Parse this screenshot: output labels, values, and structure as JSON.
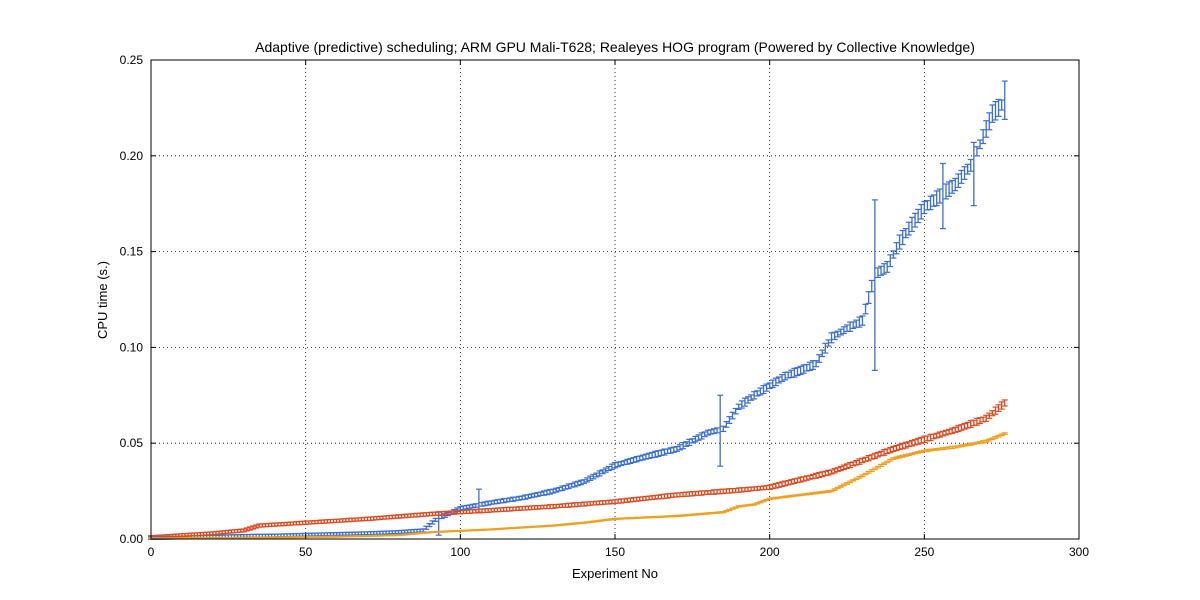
{
  "chart_data": {
    "type": "scatter",
    "title": "Adaptive (predictive) scheduling; ARM GPU Mali-T628; Realeyes HOG program (Powered by Collective Knowledge)",
    "xlabel": "Experiment No",
    "ylabel": "CPU time (s.)",
    "xlim": [
      0,
      300
    ],
    "ylim": [
      0,
      0.25
    ],
    "xticks": [
      0,
      50,
      100,
      150,
      200,
      250,
      300
    ],
    "yticks": [
      0.0,
      0.05,
      0.1,
      0.15,
      0.2,
      0.25
    ],
    "xtick_labels": [
      "0",
      "50",
      "100",
      "150",
      "200",
      "250",
      "300"
    ],
    "ytick_labels": [
      "0.00",
      "0.05",
      "0.10",
      "0.15",
      "0.20",
      "0.25"
    ],
    "grid": true,
    "legend": "none",
    "marker": "error bars (mean with min/max whiskers)",
    "x_range_all_series": [
      0,
      276
    ],
    "series": [
      {
        "color": "#3a6fd8",
        "shape_points": [
          [
            0,
            0.0005
          ],
          [
            10,
            0.0008
          ],
          [
            20,
            0.0012
          ],
          [
            30,
            0.0016
          ],
          [
            40,
            0.0018
          ],
          [
            50,
            0.0022
          ],
          [
            60,
            0.0026
          ],
          [
            70,
            0.003
          ],
          [
            80,
            0.0036
          ],
          [
            88,
            0.0045
          ],
          [
            92,
            0.01
          ],
          [
            100,
            0.016
          ],
          [
            110,
            0.019
          ],
          [
            120,
            0.0215
          ],
          [
            130,
            0.025
          ],
          [
            140,
            0.03
          ],
          [
            150,
            0.0385
          ],
          [
            160,
            0.043
          ],
          [
            170,
            0.047
          ],
          [
            180,
            0.0555
          ],
          [
            185,
            0.0575
          ],
          [
            190,
            0.069
          ],
          [
            195,
            0.075
          ],
          [
            200,
            0.08
          ],
          [
            205,
            0.085
          ],
          [
            210,
            0.088
          ],
          [
            215,
            0.0915
          ],
          [
            220,
            0.105
          ],
          [
            225,
            0.11
          ],
          [
            230,
            0.114
          ],
          [
            234,
            0.138
          ],
          [
            238,
            0.142
          ],
          [
            242,
            0.155
          ],
          [
            245,
            0.162
          ],
          [
            250,
            0.173
          ],
          [
            255,
            0.179
          ],
          [
            260,
            0.185
          ],
          [
            265,
            0.195
          ],
          [
            268,
            0.206
          ],
          [
            272,
            0.222
          ],
          [
            276,
            0.228
          ]
        ],
        "large_errorbars": [
          {
            "x": 184,
            "low": 0.038,
            "high": 0.075
          },
          {
            "x": 234,
            "low": 0.088,
            "high": 0.177
          },
          {
            "x": 256,
            "low": 0.162,
            "high": 0.196
          },
          {
            "x": 266,
            "low": 0.174,
            "high": 0.207
          },
          {
            "x": 276,
            "low": 0.219,
            "high": 0.239
          },
          {
            "x": 106,
            "low": 0.014,
            "high": 0.026
          },
          {
            "x": 93,
            "low": 0.002,
            "high": 0.014
          }
        ]
      },
      {
        "color": "#e04a1f",
        "shape_points": [
          [
            0,
            0.001
          ],
          [
            10,
            0.002
          ],
          [
            20,
            0.003
          ],
          [
            30,
            0.0045
          ],
          [
            35,
            0.007
          ],
          [
            50,
            0.0085
          ],
          [
            70,
            0.0105
          ],
          [
            90,
            0.013
          ],
          [
            110,
            0.015
          ],
          [
            130,
            0.017
          ],
          [
            150,
            0.0195
          ],
          [
            170,
            0.023
          ],
          [
            190,
            0.0255
          ],
          [
            200,
            0.027
          ],
          [
            210,
            0.031
          ],
          [
            220,
            0.035
          ],
          [
            230,
            0.041
          ],
          [
            240,
            0.047
          ],
          [
            250,
            0.052
          ],
          [
            260,
            0.057
          ],
          [
            270,
            0.063
          ],
          [
            276,
            0.071
          ]
        ]
      },
      {
        "color": "#f0a020",
        "shape_points": [
          [
            0,
            0.0003
          ],
          [
            30,
            0.0006
          ],
          [
            60,
            0.0012
          ],
          [
            80,
            0.002
          ],
          [
            90,
            0.0035
          ],
          [
            110,
            0.005
          ],
          [
            130,
            0.007
          ],
          [
            140,
            0.0085
          ],
          [
            150,
            0.0105
          ],
          [
            170,
            0.012
          ],
          [
            185,
            0.014
          ],
          [
            190,
            0.017
          ],
          [
            195,
            0.018
          ],
          [
            200,
            0.021
          ],
          [
            210,
            0.023
          ],
          [
            220,
            0.025
          ],
          [
            230,
            0.033
          ],
          [
            240,
            0.042
          ],
          [
            250,
            0.046
          ],
          [
            260,
            0.048
          ],
          [
            270,
            0.051
          ],
          [
            276,
            0.055
          ]
        ]
      }
    ]
  }
}
